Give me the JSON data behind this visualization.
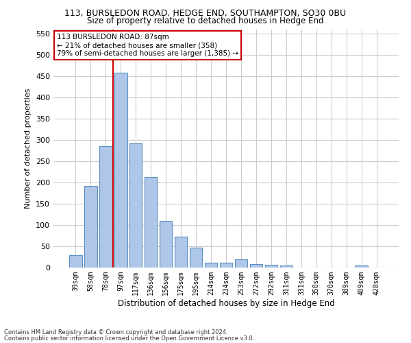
{
  "title_line1": "113, BURSLEDON ROAD, HEDGE END, SOUTHAMPTON, SO30 0BU",
  "title_line2": "Size of property relative to detached houses in Hedge End",
  "xlabel": "Distribution of detached houses by size in Hedge End",
  "ylabel": "Number of detached properties",
  "categories": [
    "39sqm",
    "58sqm",
    "78sqm",
    "97sqm",
    "117sqm",
    "136sqm",
    "156sqm",
    "175sqm",
    "195sqm",
    "214sqm",
    "234sqm",
    "253sqm",
    "272sqm",
    "292sqm",
    "311sqm",
    "331sqm",
    "350sqm",
    "370sqm",
    "389sqm",
    "409sqm",
    "428sqm"
  ],
  "values": [
    29,
    191,
    285,
    458,
    291,
    212,
    109,
    73,
    46,
    12,
    12,
    20,
    8,
    6,
    5,
    0,
    0,
    0,
    0,
    5,
    0
  ],
  "bar_color": "#aec6e8",
  "bar_edge_color": "#5a8fc2",
  "red_line_x": 2.5,
  "annotation_text": "113 BURSLEDON ROAD: 87sqm\n← 21% of detached houses are smaller (358)\n79% of semi-detached houses are larger (1,385) →",
  "annotation_box_color": "#ffffff",
  "annotation_box_edge_color": "#cc0000",
  "red_line_color": "#cc0000",
  "ylim": [
    0,
    560
  ],
  "yticks": [
    0,
    50,
    100,
    150,
    200,
    250,
    300,
    350,
    400,
    450,
    500,
    550
  ],
  "footnote1": "Contains HM Land Registry data © Crown copyright and database right 2024.",
  "footnote2": "Contains public sector information licensed under the Open Government Licence v3.0.",
  "background_color": "#ffffff",
  "grid_color": "#cccccc"
}
